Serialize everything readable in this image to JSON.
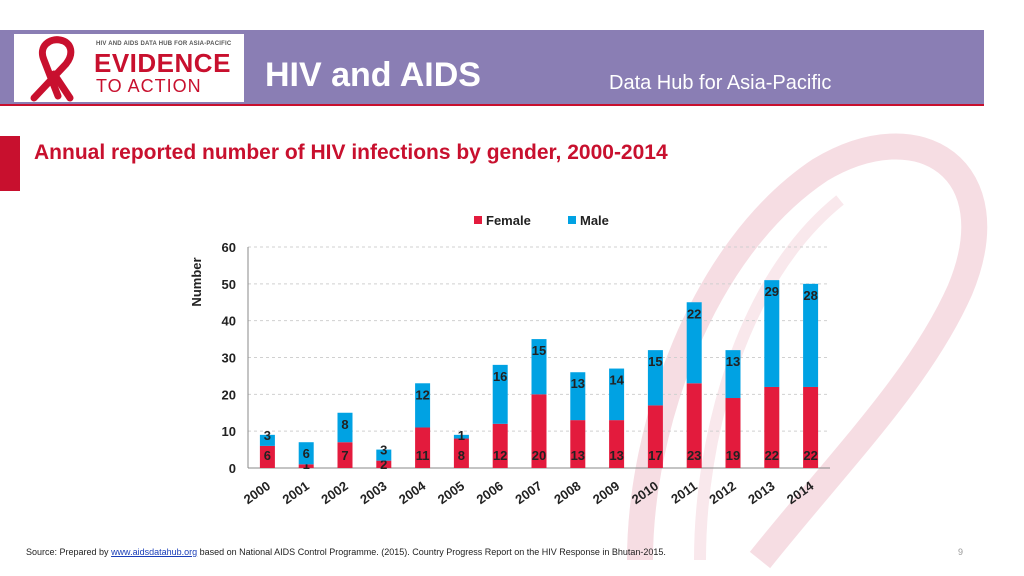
{
  "header": {
    "logo_top": "HIV AND AIDS DATA HUB FOR ASIA-PACIFIC",
    "logo_main": "EVIDENCE",
    "logo_sub": "TO ACTION",
    "title": "HIV and AIDS",
    "subtitle": "Data Hub for Asia-Pacific"
  },
  "slide_title": "Annual reported number of HIV infections by gender, 2000-2014",
  "footer": {
    "source_prefix": "Source: Prepared by ",
    "source_link": "www.aidsdatahub.org",
    "source_suffix": " based on National AIDS Control Programme. (2015). Country Progress Report on the HIV Response in Bhutan-2015."
  },
  "page_number": "9",
  "colors": {
    "female": "#e31b3d",
    "male": "#00a2e3",
    "accent": "#c8102e",
    "header_bg": "#8a7eb4"
  },
  "chart_data": {
    "type": "bar",
    "stacked": true,
    "title": "",
    "xlabel": "",
    "ylabel": "Number",
    "ylim": [
      0,
      60
    ],
    "yticks": [
      0,
      10,
      20,
      30,
      40,
      50,
      60
    ],
    "legend_position": "top",
    "categories": [
      "2000",
      "2001",
      "2002",
      "2003",
      "2004",
      "2005",
      "2006",
      "2007",
      "2008",
      "2009",
      "2010",
      "2011",
      "2012",
      "2013",
      "2014"
    ],
    "series": [
      {
        "name": "Female",
        "values": [
          6,
          1,
          7,
          2,
          11,
          8,
          12,
          20,
          13,
          13,
          17,
          23,
          19,
          22,
          22
        ]
      },
      {
        "name": "Male",
        "values": [
          3,
          6,
          8,
          3,
          12,
          1,
          16,
          15,
          13,
          14,
          15,
          22,
          13,
          29,
          28
        ]
      }
    ]
  }
}
